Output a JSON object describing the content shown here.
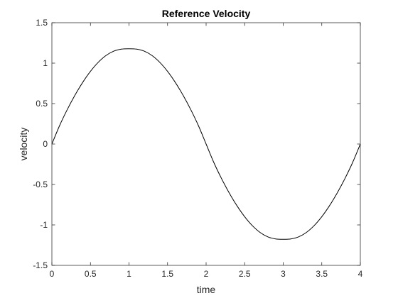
{
  "chart_data": {
    "type": "line",
    "title": "Reference Velocity",
    "xlabel": "time",
    "ylabel": "velocity",
    "xlim": [
      0,
      4
    ],
    "ylim": [
      -1.5,
      1.5
    ],
    "xticks": [
      0,
      0.5,
      1,
      1.5,
      2,
      2.5,
      3,
      3.5,
      4
    ],
    "xtick_labels": [
      "0",
      "0.5",
      "1",
      "1.5",
      "2",
      "2.5",
      "3",
      "3.5",
      "4"
    ],
    "yticks": [
      -1.5,
      -1,
      -0.5,
      0,
      0.5,
      1,
      1.5
    ],
    "ytick_labels": [
      "-1.5",
      "-1",
      "-0.5",
      "0",
      "0.5",
      "1",
      "1.5"
    ],
    "grid": false,
    "series": [
      {
        "color": "#000000",
        "x": [
          0,
          0.1,
          0.2,
          0.3,
          0.4,
          0.5,
          0.6,
          0.7,
          0.8,
          0.9,
          1.0,
          1.1,
          1.2,
          1.3,
          1.4,
          1.5,
          1.6,
          1.7,
          1.8,
          1.9,
          2.0,
          2.1,
          2.2,
          2.3,
          2.4,
          2.5,
          2.6,
          2.7,
          2.8,
          2.9,
          3.0,
          3.1,
          3.2,
          3.3,
          3.4,
          3.5,
          3.6,
          3.7,
          3.8,
          3.9,
          4.0
        ],
        "y": [
          0,
          0.2282,
          0.4271,
          0.6051,
          0.7627,
          0.8984,
          1.0095,
          1.0932,
          1.1475,
          1.1732,
          1.1781,
          1.1732,
          1.1475,
          1.0932,
          1.0095,
          0.8984,
          0.7627,
          0.6051,
          0.4271,
          0.2282,
          0,
          -0.2282,
          -0.4271,
          -0.6051,
          -0.7627,
          -0.8984,
          -1.0095,
          -1.0932,
          -1.1475,
          -1.1732,
          -1.1781,
          -1.1732,
          -1.1475,
          -1.0932,
          -1.0095,
          -0.8984,
          -0.7627,
          -0.6051,
          -0.4271,
          -0.2282,
          0
        ]
      }
    ]
  }
}
